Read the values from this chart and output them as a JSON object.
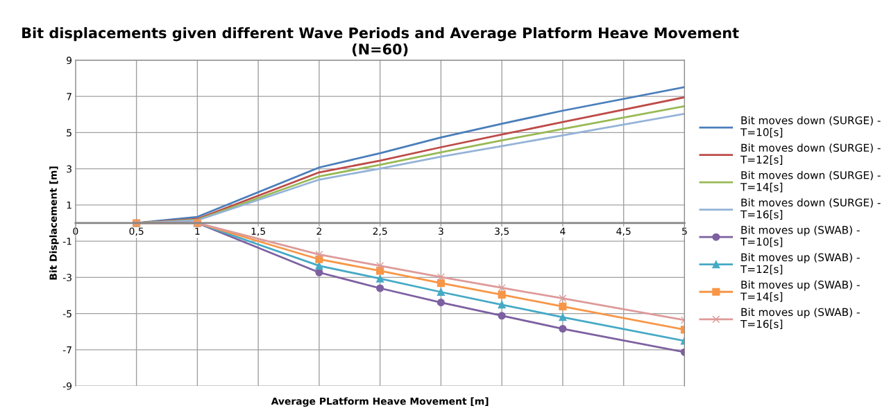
{
  "chart_data": {
    "type": "line",
    "title": "Bit displacements given different Wave Periods and Average Platform Heave Movement\n(N=60)",
    "xlabel": "Average PLatform Heave Movement [m]",
    "ylabel": "Bit Displacement [m]",
    "x": [
      0.5,
      1,
      2,
      2.5,
      3,
      3.5,
      4,
      5
    ],
    "series": [
      {
        "name": "Bit moves down (SURGE) -\nT=10[s]",
        "color": "#4a7ebb",
        "marker": "none",
        "values": [
          0,
          0.34,
          3.07,
          3.86,
          4.73,
          5.49,
          6.21,
          7.51
        ]
      },
      {
        "name": "Bit moves down (SURGE) -\nT=12[s]",
        "color": "#be4b48",
        "marker": "none",
        "values": [
          0,
          0.23,
          2.8,
          3.45,
          4.19,
          4.89,
          5.58,
          6.95
        ]
      },
      {
        "name": "Bit moves down (SURGE) -\nT=14[s]",
        "color": "#98b954",
        "marker": "none",
        "values": [
          0,
          0.18,
          2.58,
          3.22,
          3.91,
          4.57,
          5.2,
          6.46
        ]
      },
      {
        "name": "Bit moves down (SURGE) -\nT=16[s]",
        "color": "#95b3d7",
        "marker": "none",
        "values": [
          0,
          0.15,
          2.4,
          3.01,
          3.67,
          4.25,
          4.85,
          6.04
        ]
      },
      {
        "name": "Bit moves up (SWAB) -\nT=10[s]",
        "color": "#7d60a0",
        "marker": "circle",
        "values": [
          0,
          0,
          -2.73,
          -3.6,
          -4.39,
          -5.12,
          -5.84,
          -7.13
        ]
      },
      {
        "name": "Bit moves up (SWAB) -\nT=12[s]",
        "color": "#46aac5",
        "marker": "triangle",
        "values": [
          0,
          0,
          -2.36,
          -3.07,
          -3.81,
          -4.51,
          -5.2,
          -6.51
        ]
      },
      {
        "name": "Bit moves up (SWAB) -\nT=14[s]",
        "color": "#f79646",
        "marker": "square",
        "values": [
          0,
          0,
          -2.0,
          -2.64,
          -3.32,
          -3.96,
          -4.61,
          -5.89
        ]
      },
      {
        "name": "Bit moves up (SWAB) -\nT=16[s]",
        "color": "#dd9a99",
        "marker": "cross",
        "values": [
          0,
          0,
          -1.74,
          -2.36,
          -2.98,
          -3.58,
          -4.16,
          -5.36
        ]
      }
    ],
    "xlim": [
      0,
      5
    ],
    "ylim": [
      -9,
      9
    ],
    "xticks": [
      0,
      {
        "value": 0.5,
        "label": "0,5"
      },
      1,
      {
        "value": 1.5,
        "label": "1,5"
      },
      2,
      {
        "value": 2.5,
        "label": "2,5"
      },
      3,
      {
        "value": 3.5,
        "label": "3,5"
      },
      4,
      {
        "value": 4.5,
        "label": "4,5"
      },
      5
    ],
    "yticks": [
      -9,
      -7,
      -5,
      -3,
      -1,
      1,
      3,
      5,
      7,
      9
    ],
    "grid": true,
    "legend": "right",
    "line_style": "solid"
  }
}
